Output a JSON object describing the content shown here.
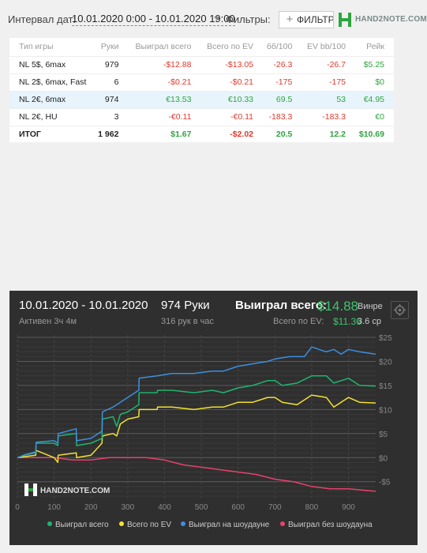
{
  "topbar": {
    "date_label": "Интервал дат:",
    "date_range": "10.01.2020 0:00 - 10.01.2020 19:00",
    "filters_label": "Фильтры:",
    "filter_button": "ФИЛЬТР",
    "brand": "HAND2NOTE.COM"
  },
  "table": {
    "headers": [
      "Тип игры",
      "Руки",
      "Выиграл всего",
      "Всего по EV",
      "бб/100",
      "EV bb/100",
      "Рейк"
    ],
    "rows": [
      [
        "NL 5$, 6max",
        "979",
        "-$12.88",
        "-$13.05",
        "-26.3",
        "-26.7",
        "$5.25"
      ],
      [
        "NL 2$, 6max, Fast",
        "6",
        "-$0.21",
        "-$0.21",
        "-175",
        "-175",
        "$0"
      ],
      [
        "NL 2€, 6max",
        "974",
        "€13.53",
        "€10.33",
        "69.5",
        "53",
        "€4.95"
      ],
      [
        "NL 2€, HU",
        "3",
        "-€0.11",
        "-€0.11",
        "-183.3",
        "-183.3",
        "€0"
      ]
    ],
    "total": [
      "ИТОГ",
      "1 962",
      "$1.67",
      "-$2.02",
      "20.5",
      "12.2",
      "$10.69"
    ]
  },
  "chart_header": {
    "date": "10.01.2020 - 10.01.2020",
    "active": "Активен 3ч 4м",
    "hands": "974 Руки",
    "hands_per_hour": "316 рук в час",
    "won_label": "Выиграл всего:",
    "won_value": "$14.88",
    "ev_label": "Всего по EV:",
    "ev_value": "$11.36",
    "extra1": "Винре",
    "extra2": "3.6 ср",
    "watermark": "HAND2NOTE.COM"
  },
  "colors": {
    "won": "#1fb56e",
    "ev": "#f2e230",
    "showdown": "#3d8fe0",
    "nonshowdown": "#e8416e",
    "positive": "#2ea53f",
    "negative": "#e0392d"
  },
  "chart_data": {
    "type": "line",
    "x_ticks": [
      0,
      100,
      200,
      300,
      400,
      500,
      600,
      700,
      800,
      900
    ],
    "y_ticks": [
      25,
      20,
      15,
      10,
      5,
      0,
      -5
    ],
    "y_tick_labels": [
      "$25",
      "$20",
      "$15",
      "$10",
      "$5",
      "$0",
      "-$5"
    ],
    "xlim": [
      0,
      974
    ],
    "ylim": [
      -8.5,
      25.5
    ],
    "grid": true,
    "legend_position": "bottom",
    "series": [
      {
        "name": "Выиграл всего",
        "color": "#1fb56e",
        "x": [
          0,
          20,
          50,
          51,
          100,
          110,
          111,
          160,
          161,
          200,
          230,
          231,
          260,
          270,
          280,
          300,
          330,
          331,
          380,
          381,
          420,
          480,
          530,
          560,
          600,
          640,
          680,
          700,
          720,
          760,
          800,
          840,
          860,
          900,
          930,
          974
        ],
        "y": [
          0,
          0.5,
          1,
          3,
          3,
          2.5,
          4.5,
          5,
          2.5,
          3,
          4,
          8,
          8.5,
          6.5,
          9,
          9.5,
          11,
          13.5,
          13.5,
          14,
          14,
          13.5,
          14,
          13.5,
          14.5,
          15,
          16,
          16,
          15,
          15.5,
          17,
          17,
          15.5,
          16.5,
          15,
          14.88
        ]
      },
      {
        "name": "Всего по EV",
        "color": "#f2e230",
        "x": [
          0,
          20,
          50,
          51,
          100,
          110,
          111,
          160,
          161,
          200,
          230,
          231,
          260,
          270,
          280,
          300,
          330,
          331,
          380,
          381,
          420,
          480,
          530,
          560,
          600,
          640,
          680,
          700,
          720,
          760,
          800,
          840,
          860,
          900,
          930,
          974
        ],
        "y": [
          0,
          0.2,
          0.5,
          1.5,
          0,
          -1,
          0.5,
          1,
          0,
          0.5,
          3,
          4.5,
          5,
          4.5,
          7,
          8,
          8.5,
          10,
          10,
          10.5,
          10.5,
          10,
          10.5,
          10.5,
          11.5,
          11.5,
          12.5,
          12.5,
          11.5,
          11,
          13,
          12.5,
          10.5,
          12.5,
          11.5,
          11.36
        ]
      },
      {
        "name": "Выиграл на шоудауне",
        "color": "#3d8fe0",
        "x": [
          0,
          20,
          50,
          51,
          100,
          110,
          111,
          160,
          161,
          200,
          230,
          231,
          260,
          280,
          300,
          330,
          331,
          380,
          420,
          480,
          530,
          560,
          600,
          640,
          680,
          700,
          740,
          780,
          800,
          820,
          840,
          860,
          880,
          900,
          930,
          974
        ],
        "y": [
          0,
          0.6,
          1.2,
          3.2,
          3.5,
          3,
          5,
          6,
          3.5,
          4,
          5.5,
          9.5,
          10.5,
          11.5,
          12.5,
          14,
          16.5,
          17,
          17.5,
          17.5,
          18,
          18,
          19,
          19.5,
          20,
          20.5,
          21,
          21,
          23,
          22.5,
          22,
          22.5,
          21.5,
          22.5,
          22,
          21.5
        ]
      },
      {
        "name": "Выиграл без шоудауна",
        "color": "#e8416e",
        "x": [
          0,
          50,
          100,
          150,
          200,
          250,
          300,
          350,
          400,
          450,
          500,
          550,
          600,
          650,
          700,
          750,
          800,
          850,
          900,
          974
        ],
        "y": [
          0,
          0,
          0,
          -0.5,
          -0.5,
          0,
          0,
          0,
          -0.5,
          -1.5,
          -2,
          -2.5,
          -3,
          -3.5,
          -4.5,
          -5,
          -6,
          -6.5,
          -6.5,
          -7
        ]
      }
    ]
  }
}
